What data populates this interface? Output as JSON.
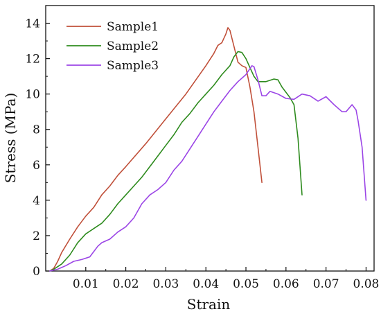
{
  "chart_data": {
    "type": "line",
    "title": "",
    "xlabel": "Strain",
    "ylabel": "Stress (MPa)",
    "xlim": [
      0,
      0.082
    ],
    "ylim": [
      0,
      15
    ],
    "x_ticks": [
      0.01,
      0.02,
      0.03,
      0.04,
      0.05,
      0.06,
      0.07,
      0.08
    ],
    "x_tick_labels": [
      "0.01",
      "0.02",
      "0.03",
      "0.04",
      "0.05",
      "0.06",
      "0.07",
      "0.08"
    ],
    "y_ticks": [
      0,
      2,
      4,
      6,
      8,
      10,
      12,
      14
    ],
    "y_tick_labels": [
      "0",
      "2",
      "4",
      "6",
      "8",
      "10",
      "12",
      "14"
    ],
    "grid": false,
    "legend_position": "top-left",
    "series": [
      {
        "name": "Sample1",
        "color": "#c0503a",
        "points": [
          [
            0.001,
            0.0
          ],
          [
            0.002,
            0.15
          ],
          [
            0.003,
            0.55
          ],
          [
            0.004,
            1.05
          ],
          [
            0.006,
            1.8
          ],
          [
            0.008,
            2.5
          ],
          [
            0.01,
            3.1
          ],
          [
            0.012,
            3.6
          ],
          [
            0.014,
            4.3
          ],
          [
            0.016,
            4.8
          ],
          [
            0.018,
            5.4
          ],
          [
            0.02,
            5.9
          ],
          [
            0.025,
            7.2
          ],
          [
            0.03,
            8.6
          ],
          [
            0.035,
            10.0
          ],
          [
            0.04,
            11.6
          ],
          [
            0.042,
            12.3
          ],
          [
            0.043,
            12.75
          ],
          [
            0.044,
            12.9
          ],
          [
            0.045,
            13.4
          ],
          [
            0.0455,
            13.75
          ],
          [
            0.046,
            13.6
          ],
          [
            0.047,
            12.7
          ],
          [
            0.048,
            11.8
          ],
          [
            0.049,
            11.6
          ],
          [
            0.05,
            11.5
          ],
          [
            0.051,
            10.4
          ],
          [
            0.052,
            9.0
          ],
          [
            0.053,
            7.0
          ],
          [
            0.054,
            5.0
          ]
        ]
      },
      {
        "name": "Sample2",
        "color": "#2e8b1e",
        "points": [
          [
            0.001,
            0.0
          ],
          [
            0.002,
            0.1
          ],
          [
            0.004,
            0.4
          ],
          [
            0.006,
            0.9
          ],
          [
            0.008,
            1.6
          ],
          [
            0.01,
            2.1
          ],
          [
            0.012,
            2.4
          ],
          [
            0.014,
            2.7
          ],
          [
            0.016,
            3.2
          ],
          [
            0.018,
            3.8
          ],
          [
            0.02,
            4.3
          ],
          [
            0.022,
            4.8
          ],
          [
            0.024,
            5.3
          ],
          [
            0.026,
            5.9
          ],
          [
            0.028,
            6.5
          ],
          [
            0.03,
            7.1
          ],
          [
            0.032,
            7.7
          ],
          [
            0.034,
            8.4
          ],
          [
            0.036,
            8.9
          ],
          [
            0.038,
            9.5
          ],
          [
            0.04,
            10.0
          ],
          [
            0.042,
            10.5
          ],
          [
            0.044,
            11.1
          ],
          [
            0.046,
            11.6
          ],
          [
            0.047,
            12.1
          ],
          [
            0.048,
            12.4
          ],
          [
            0.049,
            12.35
          ],
          [
            0.05,
            12.0
          ],
          [
            0.051,
            11.5
          ],
          [
            0.052,
            11.0
          ],
          [
            0.053,
            10.7
          ],
          [
            0.055,
            10.7
          ],
          [
            0.057,
            10.85
          ],
          [
            0.058,
            10.8
          ],
          [
            0.059,
            10.4
          ],
          [
            0.06,
            10.1
          ],
          [
            0.061,
            9.8
          ],
          [
            0.062,
            9.4
          ],
          [
            0.063,
            7.5
          ],
          [
            0.064,
            4.3
          ]
        ]
      },
      {
        "name": "Sample3",
        "color": "#9b45e6",
        "points": [
          [
            0.001,
            0.0
          ],
          [
            0.003,
            0.1
          ],
          [
            0.005,
            0.3
          ],
          [
            0.007,
            0.55
          ],
          [
            0.009,
            0.65
          ],
          [
            0.011,
            0.8
          ],
          [
            0.013,
            1.4
          ],
          [
            0.014,
            1.6
          ],
          [
            0.016,
            1.8
          ],
          [
            0.018,
            2.2
          ],
          [
            0.02,
            2.5
          ],
          [
            0.022,
            3.0
          ],
          [
            0.024,
            3.8
          ],
          [
            0.026,
            4.3
          ],
          [
            0.028,
            4.6
          ],
          [
            0.03,
            5.0
          ],
          [
            0.032,
            5.7
          ],
          [
            0.034,
            6.2
          ],
          [
            0.036,
            6.9
          ],
          [
            0.038,
            7.6
          ],
          [
            0.04,
            8.3
          ],
          [
            0.042,
            9.0
          ],
          [
            0.044,
            9.6
          ],
          [
            0.046,
            10.2
          ],
          [
            0.048,
            10.7
          ],
          [
            0.05,
            11.1
          ],
          [
            0.0515,
            11.6
          ],
          [
            0.052,
            11.55
          ],
          [
            0.053,
            10.8
          ],
          [
            0.054,
            9.9
          ],
          [
            0.055,
            9.9
          ],
          [
            0.056,
            10.15
          ],
          [
            0.058,
            10.0
          ],
          [
            0.06,
            9.75
          ],
          [
            0.062,
            9.7
          ],
          [
            0.064,
            10.0
          ],
          [
            0.066,
            9.9
          ],
          [
            0.068,
            9.6
          ],
          [
            0.07,
            9.85
          ],
          [
            0.072,
            9.4
          ],
          [
            0.074,
            9.0
          ],
          [
            0.075,
            9.0
          ],
          [
            0.0765,
            9.4
          ],
          [
            0.0775,
            9.1
          ],
          [
            0.078,
            8.5
          ],
          [
            0.079,
            7.0
          ],
          [
            0.08,
            4.0
          ]
        ]
      }
    ]
  }
}
